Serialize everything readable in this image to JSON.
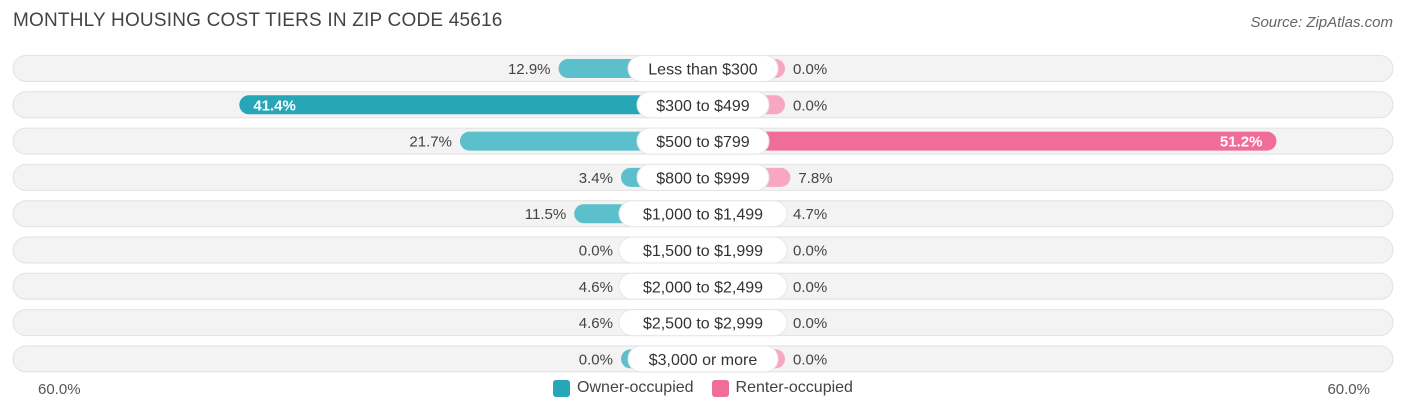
{
  "title": "MONTHLY HOUSING COST TIERS IN ZIP CODE 45616",
  "source": "Source: ZipAtlas.com",
  "colors": {
    "owner": "#5bbfcc",
    "owner_strong": "#27a6b8",
    "renter": "#f7a7c1",
    "renter_strong": "#f06d98",
    "track": "#f0f0f0"
  },
  "chart_data": {
    "type": "bar",
    "orientation": "horizontal-diverging",
    "categories": [
      "Less than $300",
      "$300 to $499",
      "$500 to $799",
      "$800 to $999",
      "$1,000 to $1,499",
      "$1,500 to $1,999",
      "$2,000 to $2,499",
      "$2,500 to $2,999",
      "$3,000 or more"
    ],
    "series": [
      {
        "name": "Owner-occupied",
        "values": [
          12.9,
          41.4,
          21.7,
          3.4,
          11.5,
          0.0,
          4.6,
          4.6,
          0.0
        ],
        "labels": [
          "12.9%",
          "41.4%",
          "21.7%",
          "3.4%",
          "11.5%",
          "0.0%",
          "4.6%",
          "4.6%",
          "0.0%"
        ]
      },
      {
        "name": "Renter-occupied",
        "values": [
          0.0,
          0.0,
          51.2,
          7.8,
          4.7,
          0.0,
          0.0,
          0.0,
          0.0
        ],
        "labels": [
          "0.0%",
          "0.0%",
          "51.2%",
          "7.8%",
          "4.7%",
          "0.0%",
          "0.0%",
          "0.0%",
          "0.0%"
        ]
      }
    ],
    "xlim": [
      -60,
      60
    ],
    "axis_labels": {
      "left": "60.0%",
      "right": "60.0%"
    },
    "legend_position": "bottom-center"
  }
}
